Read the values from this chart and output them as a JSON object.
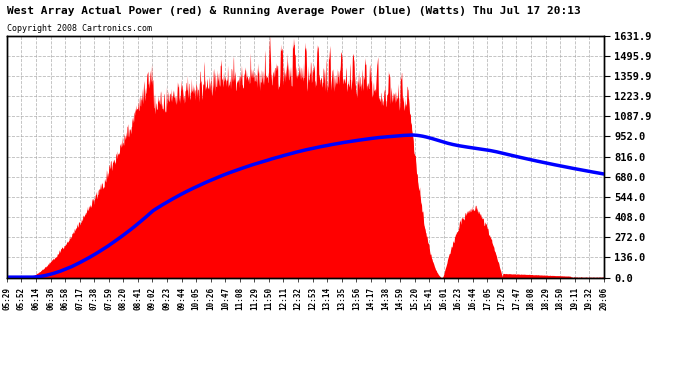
{
  "title": "West Array Actual Power (red) & Running Average Power (blue) (Watts) Thu Jul 17 20:13",
  "subtitle": "Copyright 2008 Cartronics.com",
  "bg_color": "#ffffff",
  "plot_bg_color": "#ffffff",
  "grid_color": "#aaaaaa",
  "title_color": "#000000",
  "subtitle_color": "#000000",
  "tick_color": "#000000",
  "actual_color": "#ff0000",
  "avg_color": "#0000ff",
  "yticks": [
    0.0,
    136.0,
    272.0,
    408.0,
    544.0,
    680.0,
    816.0,
    952.0,
    1087.9,
    1223.9,
    1359.9,
    1495.9,
    1631.9
  ],
  "ylim": [
    0,
    1631.9
  ],
  "xtick_labels": [
    "05:29",
    "05:52",
    "06:14",
    "06:36",
    "06:58",
    "07:17",
    "07:38",
    "07:59",
    "08:20",
    "08:41",
    "09:02",
    "09:23",
    "09:44",
    "10:05",
    "10:26",
    "10:47",
    "11:08",
    "11:29",
    "11:50",
    "12:11",
    "12:32",
    "12:53",
    "13:14",
    "13:35",
    "13:56",
    "14:17",
    "14:38",
    "14:59",
    "15:20",
    "15:41",
    "16:01",
    "16:23",
    "16:44",
    "17:05",
    "17:26",
    "17:47",
    "18:08",
    "18:29",
    "18:50",
    "19:11",
    "19:32",
    "20:06"
  ]
}
